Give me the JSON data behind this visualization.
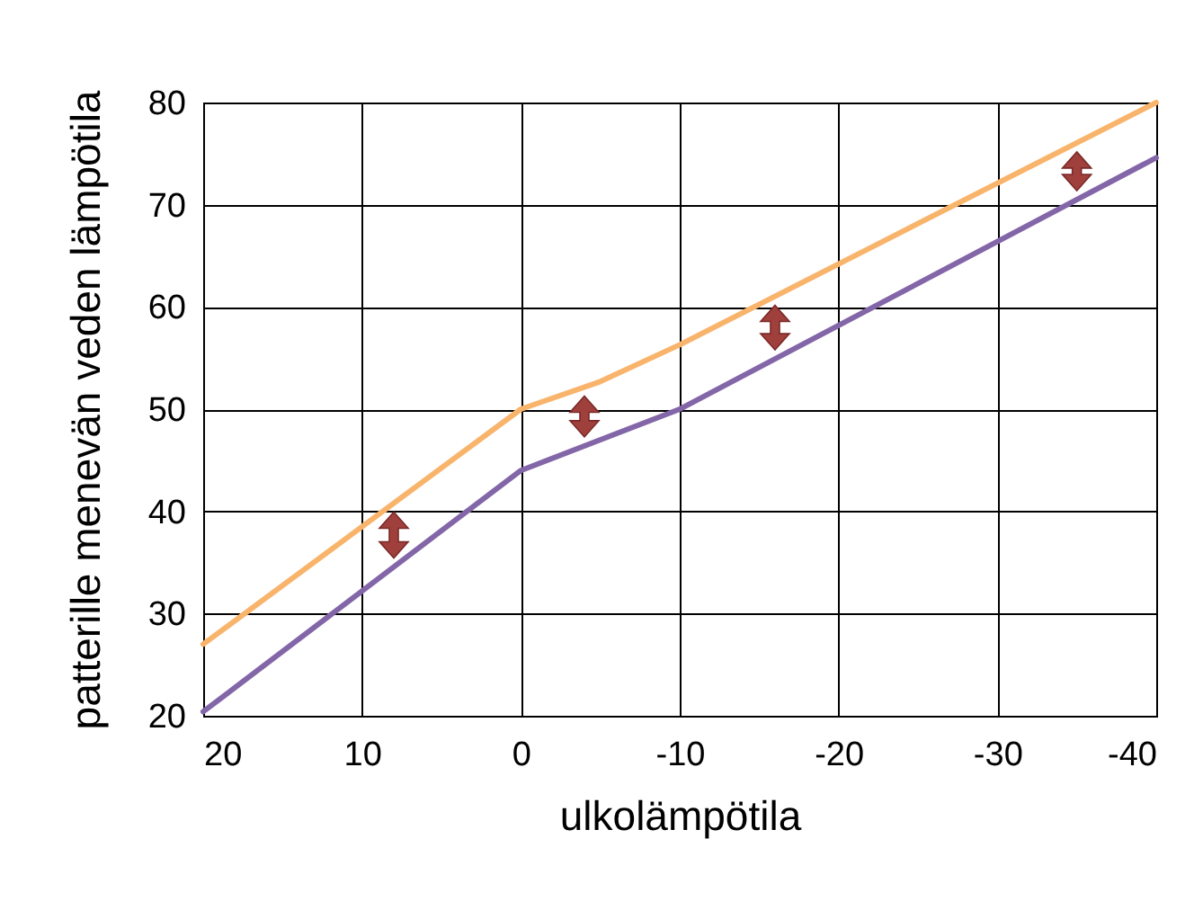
{
  "chart_data": {
    "type": "line",
    "xlabel": "ulkolämpötila",
    "ylabel": "patterille menevän veden lämpötila",
    "series": [
      {
        "color": "#f9b46c",
        "x": [
          20,
          0,
          -5,
          -10,
          -40
        ],
        "values": [
          27,
          50,
          52.7,
          56.3,
          80
        ]
      },
      {
        "color": "#8366a8",
        "x": [
          20,
          0,
          -10,
          -40
        ],
        "values": [
          20.4,
          44,
          50,
          74.6
        ]
      }
    ],
    "xlim": [
      20,
      -40
    ],
    "xticks": [
      20,
      10,
      0,
      -10,
      -20,
      -30,
      -40
    ],
    "ylim": [
      20,
      80
    ],
    "yticks": [
      20,
      30,
      40,
      50,
      60,
      70,
      80
    ],
    "grid": true,
    "marker": "none",
    "line_style": "solid"
  }
}
